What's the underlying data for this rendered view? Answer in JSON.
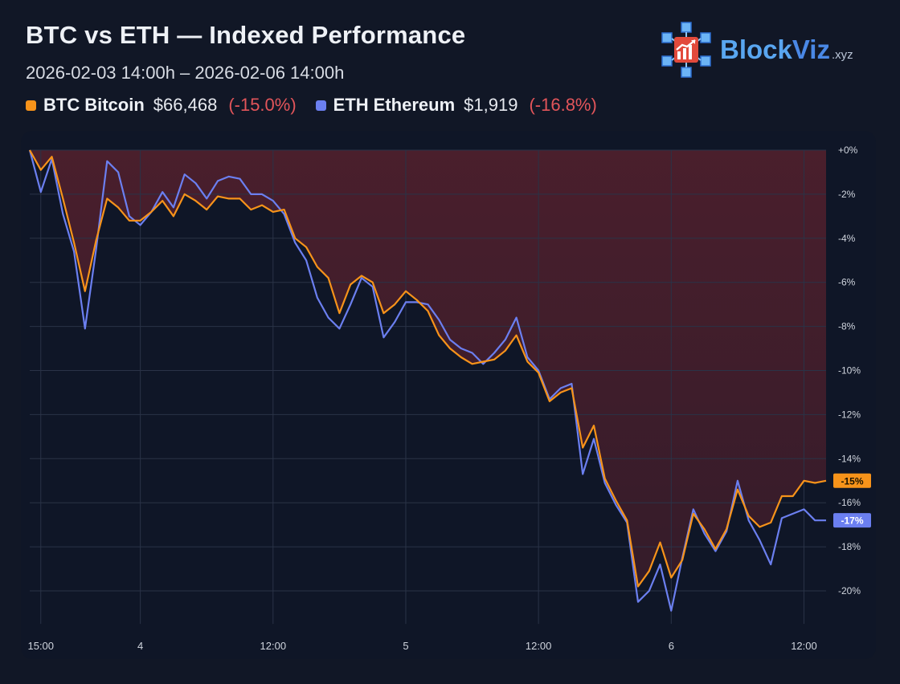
{
  "header": {
    "title": "BTC vs ETH — Indexed Performance",
    "date_range": "2026-02-03 14:00h – 2026-02-06 14:00h"
  },
  "brand": {
    "name_part1": "Block",
    "name_part2": "Viz",
    "suffix": ".xyz",
    "icon": "blockchain-chart-logo-icon"
  },
  "legend": [
    {
      "symbol": "BTC",
      "name": "Bitcoin",
      "price": "$66,468",
      "change": "(-15.0%)",
      "color": "#f7931a"
    },
    {
      "symbol": "ETH",
      "name": "Ethereum",
      "price": "$1,919",
      "change": "(-16.8%)",
      "color": "#6b7ff0"
    }
  ],
  "colors": {
    "background": "#111726",
    "card": "#0f1627",
    "btc": "#f7931a",
    "eth": "#6b7ff0",
    "fill": "#7a2630",
    "negative": "#e2555a"
  },
  "chart_data": {
    "type": "line",
    "title": "BTC vs ETH — Indexed Performance",
    "ylabel": "",
    "xlabel": "",
    "unit": "%",
    "x_hours_from_start": [
      0,
      72
    ],
    "ylim": [
      -21.5,
      0
    ],
    "y_ticks": [
      0,
      -2,
      -4,
      -6,
      -8,
      -10,
      -12,
      -14,
      -16,
      -18,
      -20
    ],
    "y_tick_labels": [
      "+0%",
      "-2%",
      "-4%",
      "-6%",
      "-8%",
      "-10%",
      "-12%",
      "-14%",
      "-16%",
      "-18%",
      "-20%"
    ],
    "x_ticks": [
      {
        "hour": 1,
        "label": "15:00"
      },
      {
        "hour": 10,
        "label": "4"
      },
      {
        "hour": 22,
        "label": "12:00"
      },
      {
        "hour": 34,
        "label": "5"
      },
      {
        "hour": 46,
        "label": "12:00"
      },
      {
        "hour": 58,
        "label": "6"
      },
      {
        "hour": 70,
        "label": "12:00"
      }
    ],
    "grid": true,
    "fill_below_zero": true,
    "series": [
      {
        "name": "BTC Bitcoin",
        "color": "#f7931a",
        "last_label": "-15%",
        "values": [
          0,
          -0.9,
          -0.3,
          -2.2,
          -4.2,
          -6.4,
          -4.1,
          -2.2,
          -2.6,
          -3.2,
          -3.2,
          -2.8,
          -2.3,
          -3.0,
          -2.0,
          -2.3,
          -2.7,
          -2.1,
          -2.2,
          -2.2,
          -2.7,
          -2.5,
          -2.8,
          -2.7,
          -4.0,
          -4.4,
          -5.3,
          -5.8,
          -7.4,
          -6.1,
          -5.7,
          -6.0,
          -7.4,
          -7.0,
          -6.4,
          -6.8,
          -7.3,
          -8.4,
          -9.0,
          -9.4,
          -9.7,
          -9.6,
          -9.5,
          -9.1,
          -8.4,
          -9.6,
          -10.1,
          -11.4,
          -11.0,
          -10.8,
          -13.5,
          -12.5,
          -14.9,
          -15.9,
          -16.8,
          -19.8,
          -19.1,
          -17.8,
          -19.4,
          -18.6,
          -16.5,
          -17.2,
          -18.1,
          -17.2,
          -15.4,
          -16.6,
          -17.1,
          -16.9,
          -15.7,
          -15.7,
          -15.0,
          -15.1,
          -15.0
        ]
      },
      {
        "name": "ETH Ethereum",
        "color": "#6b7ff0",
        "last_label": "-17%",
        "values": [
          0,
          -1.9,
          -0.4,
          -2.9,
          -4.6,
          -8.1,
          -4.5,
          -0.5,
          -1.0,
          -3.0,
          -3.4,
          -2.8,
          -1.9,
          -2.6,
          -1.1,
          -1.5,
          -2.2,
          -1.4,
          -1.2,
          -1.3,
          -2.0,
          -2.0,
          -2.3,
          -2.9,
          -4.2,
          -5.0,
          -6.7,
          -7.6,
          -8.1,
          -7.0,
          -5.8,
          -6.2,
          -8.5,
          -7.8,
          -6.9,
          -6.9,
          -7.0,
          -7.7,
          -8.6,
          -9.0,
          -9.2,
          -9.7,
          -9.2,
          -8.6,
          -7.6,
          -9.4,
          -10.0,
          -11.3,
          -10.8,
          -10.6,
          -14.7,
          -13.1,
          -15.1,
          -16.1,
          -16.9,
          -20.5,
          -20.0,
          -18.8,
          -20.9,
          -18.5,
          -16.3,
          -17.4,
          -18.2,
          -17.3,
          -15.0,
          -16.8,
          -17.7,
          -18.8,
          -16.7,
          -16.5,
          -16.3,
          -16.8,
          -16.8
        ]
      }
    ]
  }
}
